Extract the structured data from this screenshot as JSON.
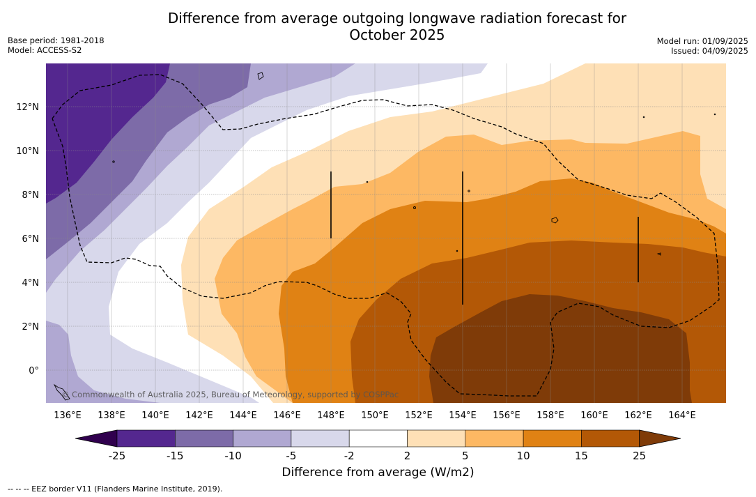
{
  "title": "Difference from average outgoing longwave radiation forecast for October 2025",
  "title_lines": [
    "Difference from average outgoing longwave radiation forecast for",
    "October 2025"
  ],
  "meta_left": [
    "Base period: 1981-2018",
    "Model: ACCESS-S2"
  ],
  "meta_right": [
    "Model run: 01/09/2025",
    "Issued: 04/09/2025"
  ],
  "copyright": "© Commonwealth of Australia 2025, Bureau of Meteorology, supported by COSPPac",
  "footnote": "--  --  -- EEZ border V11 (Flanders Marine Institute, 2019).",
  "map": {
    "lon_range": [
      135,
      166
    ],
    "lat_range": [
      -1.5,
      14
    ],
    "lon_ticks": [
      "136°E",
      "138°E",
      "140°E",
      "142°E",
      "144°E",
      "146°E",
      "148°E",
      "150°E",
      "152°E",
      "154°E",
      "156°E",
      "158°E",
      "160°E",
      "162°E",
      "164°E"
    ],
    "lat_ticks": [
      "0°",
      "2°N",
      "4°N",
      "6°N",
      "8°N",
      "10°N",
      "12°N"
    ]
  },
  "colorbar": {
    "label": "Difference from average (W/m2)",
    "ticks": [
      "-25",
      "-15",
      "-10",
      "-5",
      "-2",
      "2",
      "5",
      "10",
      "15",
      "25"
    ],
    "colors": [
      "#30004e",
      "#54278f",
      "#7d6ba8",
      "#b0a8d2",
      "#d8d8eb",
      "#ffffff",
      "#fee0b6",
      "#fdb863",
      "#e08214",
      "#b35806",
      "#7f3b08"
    ]
  }
}
